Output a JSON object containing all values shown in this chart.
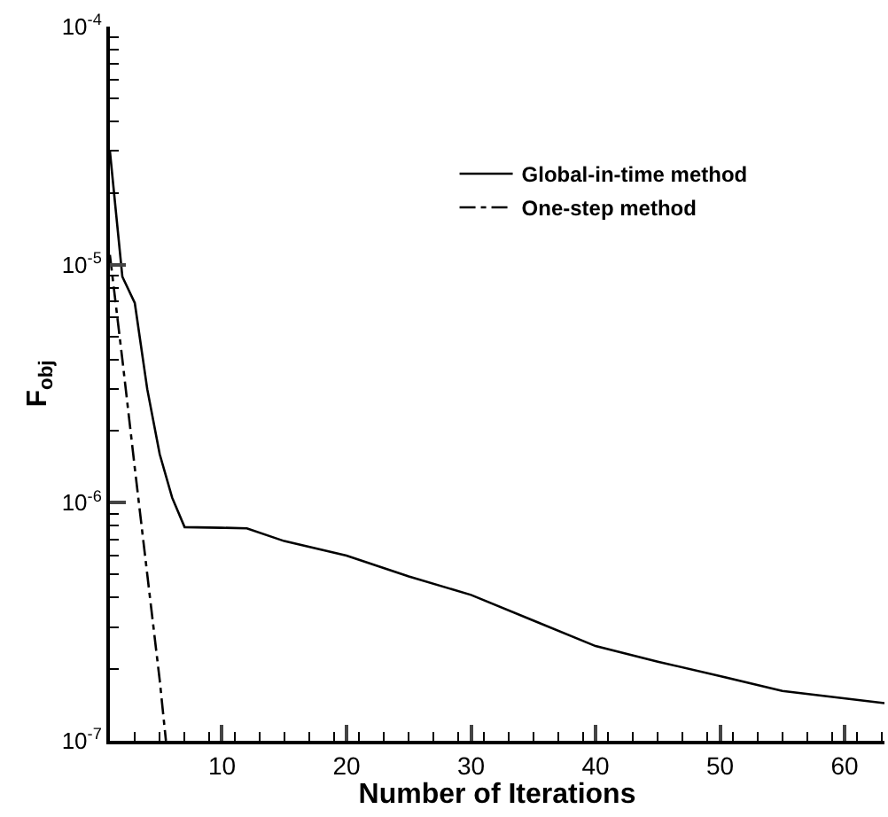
{
  "chart_data": {
    "type": "line",
    "xlabel": "Number of Iterations",
    "ylabel": "F$_{obj}$",
    "log": "y",
    "xlim": [
      1,
      63.2
    ],
    "xticks": [
      10,
      20,
      30,
      40,
      50,
      60
    ],
    "ylim": [
      1e-07,
      0.0001
    ],
    "yticks": [
      {
        "value": 1e-07,
        "label": "10$^{-7}$"
      },
      {
        "value": 1e-06,
        "label": "10$^{-6}$"
      },
      {
        "value": 1e-05,
        "label": "10$^{-5}$"
      },
      {
        "value": 0.0001,
        "label": "10$^{-4}$"
      }
    ],
    "grid": false,
    "legend": "top right",
    "marker": "none",
    "series": [
      {
        "name": "Global-in-time method",
        "color": "#000000",
        "line_style": "solid",
        "x": [
          1,
          2,
          3,
          4,
          5,
          6,
          7,
          10,
          12,
          15,
          20,
          25,
          30,
          35,
          40,
          45,
          50,
          55,
          63.2
        ],
        "values": [
          3e-05,
          8.9e-06,
          6.9e-06,
          3e-06,
          1.6e-06,
          1.05e-06,
          7.9e-07,
          7.85e-07,
          7.8e-07,
          6.9e-07,
          6e-07,
          4.9e-07,
          4.1e-07,
          3.2e-07,
          2.5e-07,
          2.15e-07,
          1.87e-07,
          1.62e-07,
          1.44e-07
        ]
      },
      {
        "name": "One-step method",
        "color": "#000000",
        "line_style": "dashdot",
        "x": [
          1,
          2,
          3,
          4,
          5,
          5.5
        ],
        "values": [
          1.1e-05,
          4e-06,
          1.4e-06,
          5e-07,
          1.8e-07,
          1e-07
        ]
      }
    ]
  }
}
